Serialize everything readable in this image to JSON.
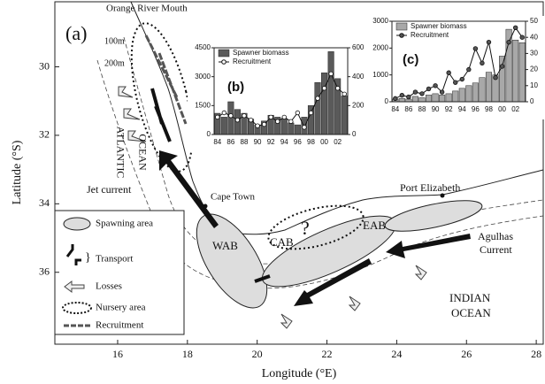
{
  "chart_data": [
    {
      "type": "map",
      "label": "(a)",
      "x_label": "Longitude (°E)",
      "y_label": "Latitude (°S)",
      "xlim": [
        14.2,
        28.2
      ],
      "ylim": [
        28.1,
        38.1
      ],
      "xticks": [
        16,
        18,
        20,
        22,
        24,
        26,
        28
      ],
      "yticks": [
        30,
        32,
        34,
        36
      ],
      "annotations": [
        "Orange River Mouth",
        "100m",
        "200m",
        "ATLANTIC",
        "OCEAN",
        "Jet current",
        "Cape Town",
        "WAB",
        "CAB",
        "?",
        "EAB",
        "Port Elizabeth",
        "Agulhas",
        "Current",
        "INDIAN",
        "OCEAN"
      ],
      "legend": [
        "Spawning area",
        "Transport",
        "Losses",
        "Nursery area",
        "Recruitment"
      ]
    },
    {
      "type": "bar",
      "label": "(b)",
      "categories": [
        "84",
        null,
        "86",
        null,
        "88",
        null,
        "90",
        null,
        "92",
        null,
        "94",
        null,
        "96",
        null,
        "98",
        null,
        "00",
        null,
        "02",
        null
      ],
      "series": [
        {
          "name": "Spawner biomass",
          "color": "#5a5a5a",
          "values": [
            1100,
            900,
            1700,
            1300,
            1100,
            800,
            500,
            700,
            1000,
            900,
            800,
            600,
            500,
            900,
            1500,
            2700,
            3200,
            4300,
            2900,
            2000
          ]
        },
        {
          "name": "Recruitment",
          "type": "line",
          "axis": "y2",
          "color": "#ffffff",
          "values": [
            120,
            150,
            130,
            100,
            130,
            100,
            60,
            70,
            120,
            90,
            120,
            90,
            150,
            50,
            150,
            250,
            320,
            420,
            320,
            280
          ]
        }
      ],
      "ylim": [
        0,
        4500
      ],
      "yticks": [
        0,
        1500,
        3000,
        4500
      ],
      "y2lim": [
        0,
        600
      ],
      "y2ticks": [
        0,
        200,
        400,
        600
      ]
    },
    {
      "type": "bar",
      "label": "(c)",
      "categories": [
        "84",
        null,
        "86",
        null,
        "88",
        null,
        "90",
        null,
        "92",
        null,
        "94",
        null,
        "96",
        null,
        "98",
        null,
        "00",
        null,
        "02",
        null
      ],
      "series": [
        {
          "name": "Spawner biomass",
          "color": "#a8a8a8",
          "values": [
            100,
            120,
            100,
            200,
            150,
            250,
            300,
            250,
            300,
            400,
            500,
            600,
            700,
            900,
            1100,
            1000,
            1700,
            2700,
            2300,
            2200
          ]
        },
        {
          "name": "Recruitment",
          "type": "line",
          "axis": "y2",
          "color": "#555555",
          "values": [
            2,
            4,
            3,
            6,
            5,
            8,
            10,
            6,
            18,
            12,
            14,
            20,
            33,
            24,
            37,
            15,
            22,
            37,
            46,
            40
          ]
        }
      ],
      "ylim": [
        0,
        3000
      ],
      "yticks": [
        0,
        1000,
        2000,
        3000
      ],
      "y2lim": [
        0,
        50
      ],
      "y2ticks": [
        0,
        10,
        20,
        30,
        40,
        50
      ]
    }
  ]
}
